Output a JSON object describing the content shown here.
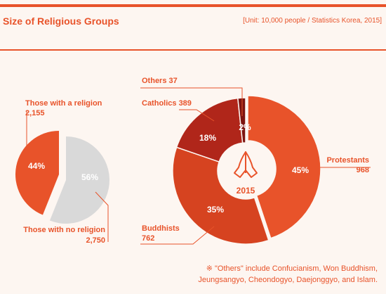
{
  "header": {
    "title": "Size of Religious Groups",
    "unit": "[Unit: 10,000 people / Statistics Korea, 2015]"
  },
  "footnote": {
    "line1": "※ \"Others\" include Confucianism, Won Buddhism,",
    "line2": "Jeungsangyo, Cheondogyo, Daejonggyo, and Islam."
  },
  "center_label": "2015",
  "icon": "praying-hands-icon",
  "colors": {
    "accent": "#e8532a",
    "protestants": "#e8532a",
    "buddhists": "#d64320",
    "catholics": "#b0261a",
    "others": "#7d1410",
    "no_religion": "#d9d9d9"
  },
  "chart_data": [
    {
      "type": "pie",
      "slices": [
        {
          "name": "Those with a religion",
          "value": 2155,
          "percent": "44%",
          "value_label": "2,155"
        },
        {
          "name": "Those with no religion",
          "value": 2750,
          "percent": "56%",
          "value_label": "2,750"
        }
      ]
    },
    {
      "type": "pie",
      "subtype": "donut",
      "center_label": "2015",
      "slices": [
        {
          "name": "Protestants",
          "value": 968,
          "percent": "45%",
          "value_label": "968"
        },
        {
          "name": "Buddhists",
          "value": 762,
          "percent": "35%",
          "value_label": "762"
        },
        {
          "name": "Catholics",
          "value": 389,
          "percent": "18%",
          "value_label": "389"
        },
        {
          "name": "Others",
          "value": 37,
          "percent": "2%",
          "value_label": "37"
        }
      ]
    }
  ]
}
